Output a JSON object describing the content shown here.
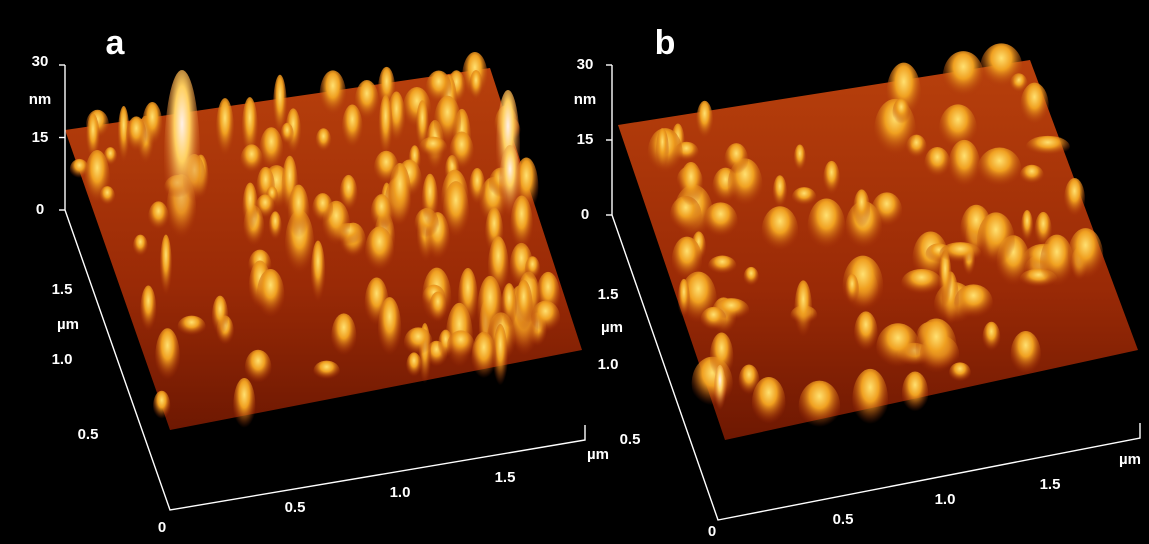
{
  "panels": [
    {
      "label": "a",
      "z_ticks": [
        "30",
        "15",
        "0"
      ],
      "z_unit": "nm",
      "y_ticks": [
        "1.5",
        "1.0",
        "0.5"
      ],
      "y_unit": "µm",
      "origin": "0",
      "x_ticks": [
        "0.5",
        "1.0",
        "1.5"
      ],
      "x_unit": "µm"
    },
    {
      "label": "b",
      "z_ticks": [
        "30",
        "15",
        "0"
      ],
      "z_unit": "nm",
      "y_ticks": [
        "1.5",
        "1.0",
        "0.5"
      ],
      "y_unit": "µm",
      "origin": "0",
      "x_ticks": [
        "0.5",
        "1.0",
        "1.5"
      ],
      "x_unit": "µm"
    }
  ]
}
